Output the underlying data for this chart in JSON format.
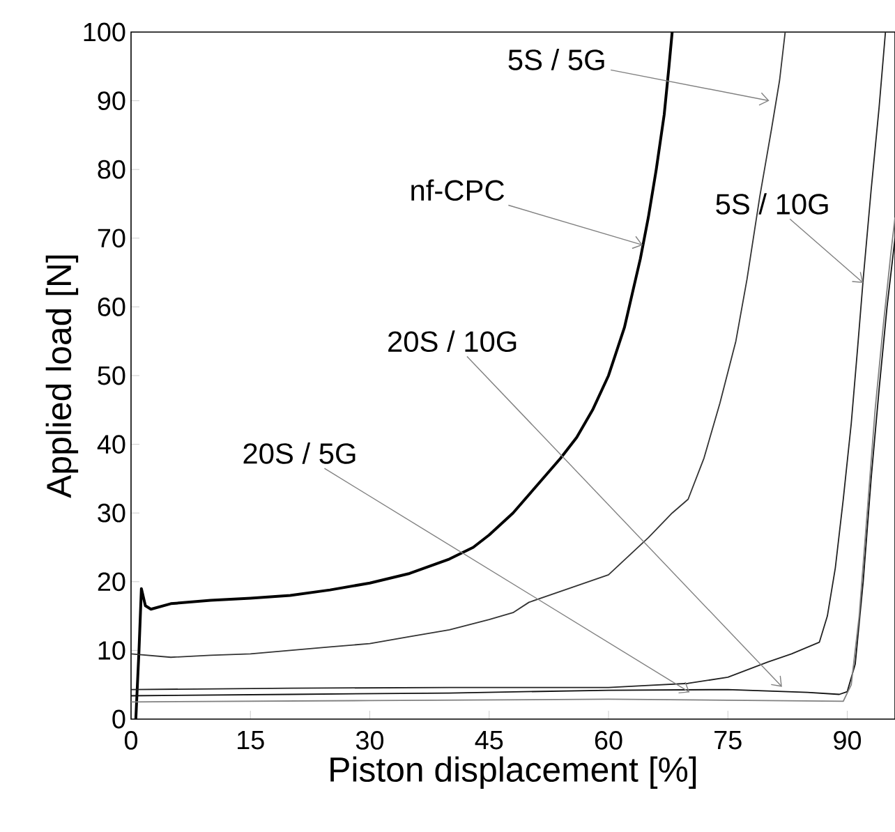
{
  "chart_data": {
    "type": "line",
    "xlabel": "Piston displacement [%]",
    "ylabel": "Applied load [N]",
    "xlim": [
      0,
      96
    ],
    "ylim": [
      0,
      100
    ],
    "xticks": [
      0,
      15,
      30,
      45,
      60,
      75,
      90
    ],
    "yticks": [
      0,
      10,
      20,
      30,
      40,
      50,
      60,
      70,
      80,
      90,
      100
    ],
    "grid": false,
    "line_style": "solid",
    "series": [
      {
        "color": "#000000",
        "x": [
          0.6,
          1.0,
          1.3,
          1.8,
          2.5,
          5,
          10,
          15,
          20,
          25,
          30,
          35,
          40,
          43,
          45,
          48,
          51,
          54,
          56,
          58,
          60,
          62,
          63,
          64,
          65,
          66,
          67,
          67.6,
          68
        ],
        "values": [
          0,
          10,
          19,
          16.5,
          16,
          16.8,
          17.3,
          17.6,
          18,
          18.8,
          19.8,
          21.2,
          23.3,
          25,
          26.8,
          30,
          34,
          38,
          41,
          45,
          50,
          57,
          62,
          67,
          73,
          80,
          88,
          95,
          100
        ]
      },
      {
        "color": "#333333",
        "x": [
          0,
          5,
          10,
          15,
          20,
          25,
          30,
          35,
          40,
          45,
          48,
          50,
          55,
          60,
          65,
          68,
          70,
          72,
          74,
          76,
          77.4,
          79,
          80.5,
          81.5,
          82.2
        ],
        "values": [
          9.5,
          9,
          9.3,
          9.5,
          10,
          10.5,
          11,
          12,
          13,
          14.5,
          15.5,
          17,
          19,
          21,
          26.4,
          30,
          32,
          38,
          46,
          55,
          64,
          76,
          86,
          93,
          100
        ]
      },
      {
        "color": "#222222",
        "x": [
          0,
          20,
          40,
          60,
          65,
          70,
          75,
          80,
          83,
          86.5,
          87.5,
          88.5,
          89.5,
          90.5,
          91.3,
          92,
          93,
          94,
          94.8
        ],
        "values": [
          4.3,
          4.5,
          4.6,
          4.6,
          4.9,
          5.2,
          6.1,
          8.3,
          9.5,
          11.2,
          15,
          22,
          32,
          43,
          54,
          64,
          77,
          89,
          100
        ]
      },
      {
        "color": "#111111",
        "x": [
          0,
          20,
          40,
          60,
          75,
          85,
          89,
          90,
          91,
          92,
          93,
          94,
          95,
          96
        ],
        "values": [
          3.4,
          3.6,
          3.8,
          4.2,
          4.3,
          3.9,
          3.6,
          4,
          8,
          20,
          35,
          48,
          60,
          70
        ]
      },
      {
        "color": "#808080",
        "x": [
          0,
          30,
          60,
          89.5,
          90.5,
          91.5,
          92.5,
          93.5,
          94.5,
          95.5,
          96
        ],
        "values": [
          2.5,
          2.7,
          2.9,
          2.6,
          5,
          15,
          30,
          45,
          57,
          68,
          73
        ]
      }
    ],
    "annotations": [
      {
        "text": "nf-CPC",
        "x": 64.3,
        "y": 69
      },
      {
        "text": "5S / 5G",
        "x": 80.2,
        "y": 90
      },
      {
        "text": "5S / 10G",
        "x": 92,
        "y": 63.5
      },
      {
        "text": "20S / 10G",
        "x": 81.8,
        "y": 4.7
      },
      {
        "text": "20S / 5G",
        "x": 70.2,
        "y": 3.9
      }
    ]
  }
}
